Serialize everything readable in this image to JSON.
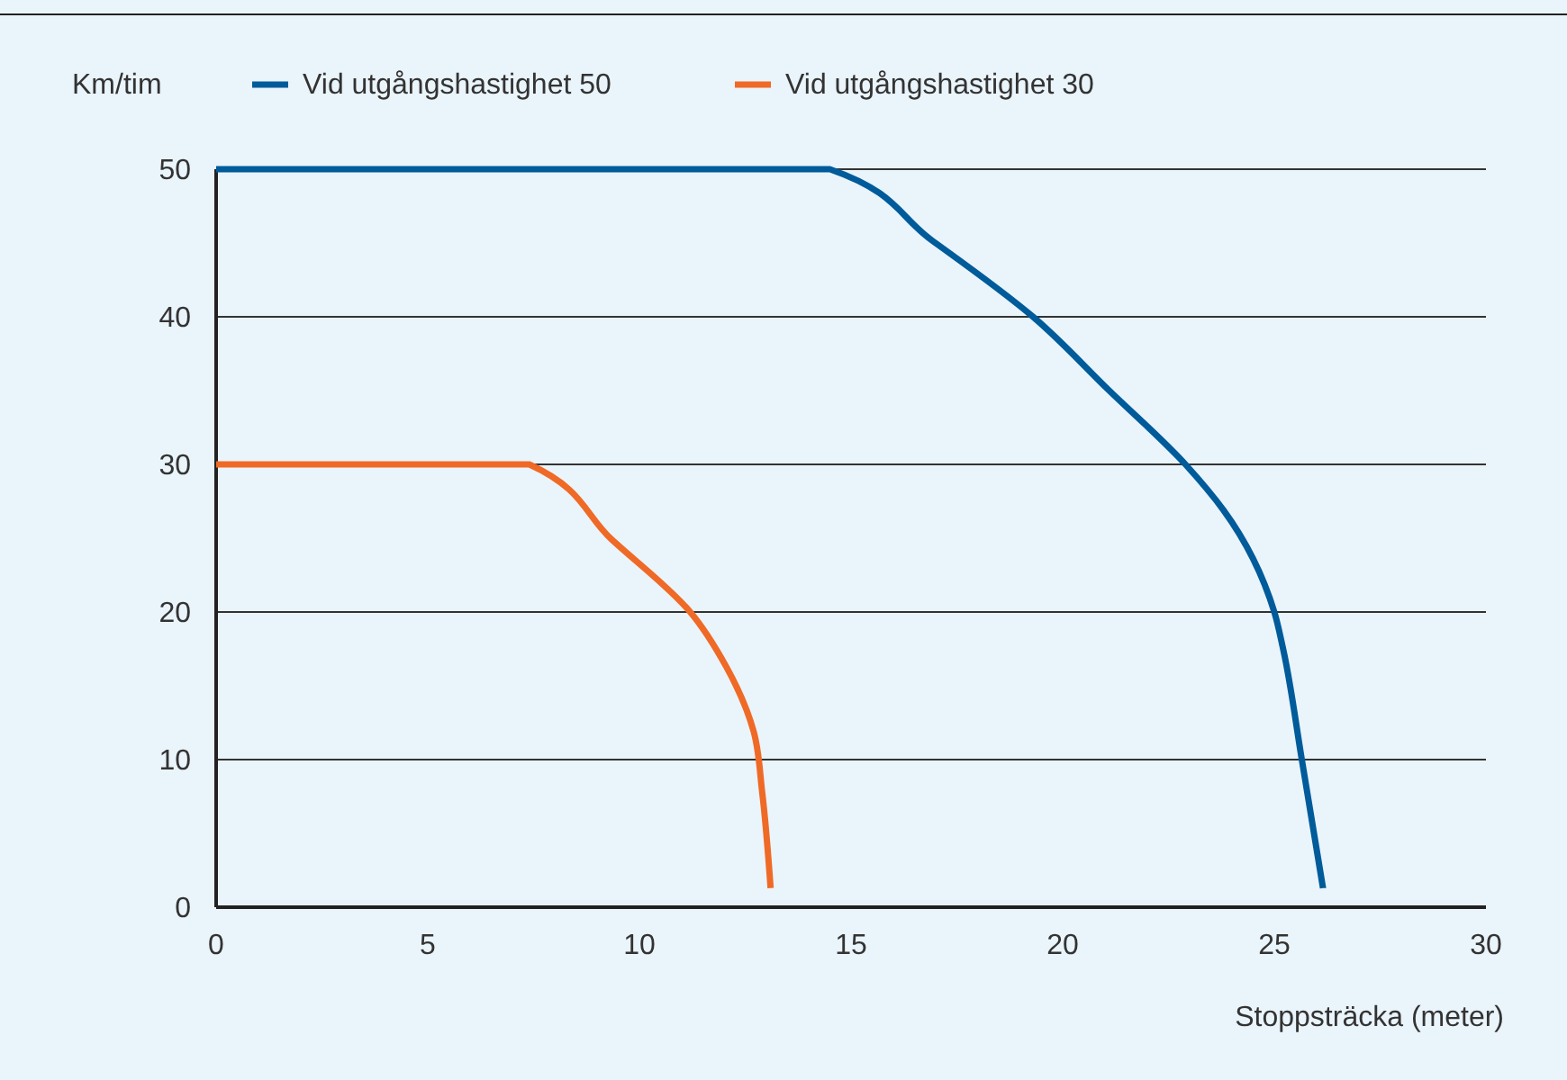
{
  "chart_data": {
    "type": "line",
    "xlabel": "Stoppsträcka (meter)",
    "ylabel": "Km/tim",
    "xlim": [
      0,
      30
    ],
    "xticks": [
      0,
      5,
      10,
      15,
      20,
      25,
      30
    ],
    "ylim": [
      0,
      50
    ],
    "yticks": [
      0,
      10,
      20,
      30,
      40,
      50
    ],
    "grid": "y",
    "legend": "top left",
    "series": [
      {
        "name": "Vid utgångshastighet 50",
        "color": "#005b9a",
        "x": [
          0,
          14.5,
          16.9,
          19.3,
          21.1,
          22.9,
          23.8,
          25.0,
          25.2,
          25.65,
          26.15
        ],
        "values": [
          50,
          50,
          45.2,
          40,
          35,
          30,
          26.9,
          20,
          17.6,
          10,
          1.3
        ]
      },
      {
        "name": "Vid utgångshastighet 30",
        "color": "#ef6a26",
        "x": [
          0,
          7.4,
          9.35,
          11.2,
          12.05,
          12.7,
          12.9,
          13.1
        ],
        "values": [
          30,
          30,
          24.9,
          20,
          16.3,
          11.9,
          7.8,
          1.3
        ]
      }
    ]
  }
}
